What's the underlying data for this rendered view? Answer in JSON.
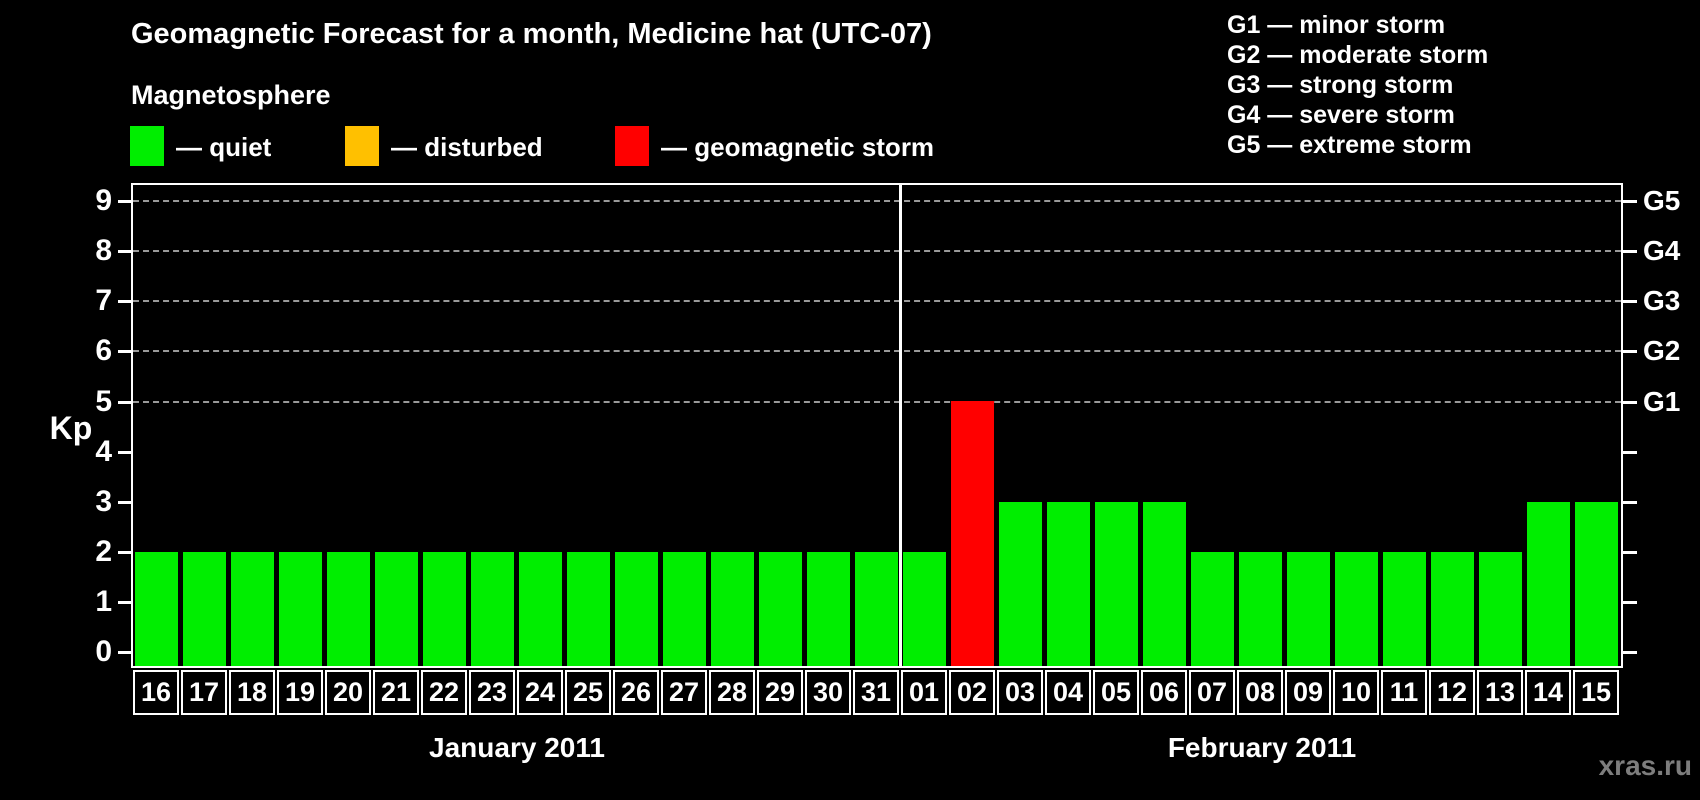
{
  "header": {
    "title": "Geomagnetic Forecast for a month, Medicine hat (UTC-07)",
    "subtitle": "Magnetosphere",
    "watermark": "xras.ru"
  },
  "legend": {
    "items": [
      {
        "key": "quiet",
        "label": "— quiet",
        "color": "#00ee00"
      },
      {
        "key": "disturbed",
        "label": "— disturbed",
        "color": "#ffc000"
      },
      {
        "key": "storm",
        "label": "— geomagnetic storm",
        "color": "#ff0000"
      }
    ]
  },
  "g_scale_legend": {
    "items": [
      "G1 — minor storm",
      "G2 — moderate storm",
      "G3 — strong storm",
      "G4 — severe storm",
      "G5 — extreme storm"
    ]
  },
  "chart_data": {
    "type": "bar",
    "title": "Geomagnetic Forecast for a month, Medicine hat (UTC-07)",
    "ylabel": "Kp",
    "ylim": [
      0,
      9
    ],
    "yticks": [
      0,
      1,
      2,
      3,
      4,
      5,
      6,
      7,
      8,
      9
    ],
    "grid_kp_levels": [
      5,
      6,
      7,
      8,
      9
    ],
    "grid": "dashed horizontal at Kp 5-9 only",
    "right_axis_labels": [
      {
        "kp": 5,
        "label": "G1"
      },
      {
        "kp": 6,
        "label": "G2"
      },
      {
        "kp": 7,
        "label": "G3"
      },
      {
        "kp": 8,
        "label": "G4"
      },
      {
        "kp": 9,
        "label": "G5"
      }
    ],
    "colors": {
      "quiet": "#00ee00",
      "disturbed": "#ffc000",
      "storm": "#ff0000"
    },
    "months": [
      {
        "label": "January 2011",
        "days": 16
      },
      {
        "label": "February 2011",
        "days": 15
      }
    ],
    "bars": [
      {
        "day": "16",
        "month": "January 2011",
        "kp": 2,
        "status": "quiet"
      },
      {
        "day": "17",
        "month": "January 2011",
        "kp": 2,
        "status": "quiet"
      },
      {
        "day": "18",
        "month": "January 2011",
        "kp": 2,
        "status": "quiet"
      },
      {
        "day": "19",
        "month": "January 2011",
        "kp": 2,
        "status": "quiet"
      },
      {
        "day": "20",
        "month": "January 2011",
        "kp": 2,
        "status": "quiet"
      },
      {
        "day": "21",
        "month": "January 2011",
        "kp": 2,
        "status": "quiet"
      },
      {
        "day": "22",
        "month": "January 2011",
        "kp": 2,
        "status": "quiet"
      },
      {
        "day": "23",
        "month": "January 2011",
        "kp": 2,
        "status": "quiet"
      },
      {
        "day": "24",
        "month": "January 2011",
        "kp": 2,
        "status": "quiet"
      },
      {
        "day": "25",
        "month": "January 2011",
        "kp": 2,
        "status": "quiet"
      },
      {
        "day": "26",
        "month": "January 2011",
        "kp": 2,
        "status": "quiet"
      },
      {
        "day": "27",
        "month": "January 2011",
        "kp": 2,
        "status": "quiet"
      },
      {
        "day": "28",
        "month": "January 2011",
        "kp": 2,
        "status": "quiet"
      },
      {
        "day": "29",
        "month": "January 2011",
        "kp": 2,
        "status": "quiet"
      },
      {
        "day": "30",
        "month": "January 2011",
        "kp": 2,
        "status": "quiet"
      },
      {
        "day": "31",
        "month": "January 2011",
        "kp": 2,
        "status": "quiet"
      },
      {
        "day": "01",
        "month": "February 2011",
        "kp": 2,
        "status": "quiet"
      },
      {
        "day": "02",
        "month": "February 2011",
        "kp": 5,
        "status": "storm"
      },
      {
        "day": "03",
        "month": "February 2011",
        "kp": 3,
        "status": "quiet"
      },
      {
        "day": "04",
        "month": "February 2011",
        "kp": 3,
        "status": "quiet"
      },
      {
        "day": "05",
        "month": "February 2011",
        "kp": 3,
        "status": "quiet"
      },
      {
        "day": "06",
        "month": "February 2011",
        "kp": 3,
        "status": "quiet"
      },
      {
        "day": "07",
        "month": "February 2011",
        "kp": 2,
        "status": "quiet"
      },
      {
        "day": "08",
        "month": "February 2011",
        "kp": 2,
        "status": "quiet"
      },
      {
        "day": "09",
        "month": "February 2011",
        "kp": 2,
        "status": "quiet"
      },
      {
        "day": "10",
        "month": "February 2011",
        "kp": 2,
        "status": "quiet"
      },
      {
        "day": "11",
        "month": "February 2011",
        "kp": 2,
        "status": "quiet"
      },
      {
        "day": "12",
        "month": "February 2011",
        "kp": 2,
        "status": "quiet"
      },
      {
        "day": "13",
        "month": "February 2011",
        "kp": 2,
        "status": "quiet"
      },
      {
        "day": "14",
        "month": "February 2011",
        "kp": 3,
        "status": "quiet"
      },
      {
        "day": "15",
        "month": "February 2011",
        "kp": 3,
        "status": "quiet"
      }
    ]
  }
}
